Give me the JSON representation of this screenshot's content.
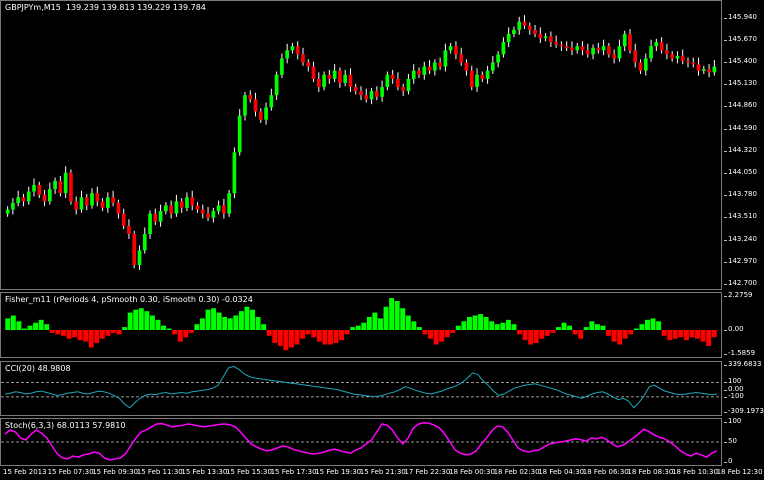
{
  "chart_data": [
    {
      "type": "candlestick",
      "symbol_label": "GBPJPYm,M15",
      "ohlc_label": "139.239 139.813 139.229 139.784",
      "ylim": [
        142.7,
        146.08
      ],
      "price_ticks": [
        "145.940",
        "145.670",
        "145.400",
        "145.130",
        "144.860",
        "144.590",
        "144.320",
        "144.050",
        "143.780",
        "143.510",
        "143.240",
        "142.970",
        "142.700"
      ],
      "closes": [
        143.6,
        143.68,
        143.75,
        143.7,
        143.82,
        143.9,
        143.78,
        143.7,
        143.85,
        143.95,
        143.8,
        144.05,
        143.7,
        143.6,
        143.75,
        143.65,
        143.8,
        143.7,
        143.62,
        143.75,
        143.68,
        143.55,
        143.4,
        143.3,
        142.92,
        143.1,
        143.3,
        143.55,
        143.45,
        143.58,
        143.65,
        143.55,
        143.7,
        143.62,
        143.75,
        143.65,
        143.6,
        143.55,
        143.5,
        143.58,
        143.65,
        143.55,
        143.8,
        144.3,
        144.75,
        145.0,
        144.95,
        144.8,
        144.7,
        144.85,
        145.0,
        145.25,
        145.45,
        145.55,
        145.6,
        145.5,
        145.4,
        145.35,
        145.2,
        145.1,
        145.25,
        145.2,
        145.3,
        145.15,
        145.25,
        145.1,
        145.05,
        145.0,
        144.95,
        145.05,
        144.98,
        145.1,
        145.25,
        145.2,
        145.1,
        145.05,
        145.2,
        145.3,
        145.25,
        145.35,
        145.3,
        145.4,
        145.35,
        145.55,
        145.6,
        145.5,
        145.4,
        145.3,
        145.1,
        145.25,
        145.2,
        145.3,
        145.4,
        145.5,
        145.65,
        145.75,
        145.8,
        145.9,
        145.85,
        145.8,
        145.75,
        145.7,
        145.72,
        145.65,
        145.62,
        145.6,
        145.58,
        145.55,
        145.6,
        145.55,
        145.5,
        145.58,
        145.55,
        145.6,
        145.5,
        145.45,
        145.6,
        145.75,
        145.55,
        145.4,
        145.3,
        145.45,
        145.6,
        145.65,
        145.55,
        145.5,
        145.45,
        145.48,
        145.42,
        145.4,
        145.38,
        145.3,
        145.32,
        145.28,
        145.35
      ]
    },
    {
      "type": "bar",
      "label": "Fisher_m11 (rPeriods 4, pSmooth 0.30, iSmooth 0.30) -0.0324",
      "ylim": [
        -1.5859,
        2.2759
      ],
      "ticks": [
        "2.2759",
        "0.00",
        "-1.5859"
      ],
      "values": [
        0.8,
        1.0,
        0.6,
        0.1,
        0.3,
        0.5,
        0.7,
        0.4,
        -0.2,
        -0.3,
        -0.4,
        -0.6,
        -0.5,
        -0.7,
        -0.8,
        -1.2,
        -0.9,
        -0.6,
        -0.4,
        -0.2,
        -0.3,
        0.2,
        1.2,
        1.4,
        1.5,
        1.3,
        1.0,
        0.7,
        0.3,
        0.1,
        -0.3,
        -0.8,
        -0.5,
        -0.2,
        0.4,
        0.8,
        1.4,
        1.5,
        1.2,
        0.9,
        0.8,
        1.0,
        1.3,
        1.6,
        1.4,
        0.9,
        0.4,
        -0.4,
        -0.9,
        -1.1,
        -1.4,
        -1.2,
        -1.0,
        -0.6,
        -0.3,
        -0.5,
        -0.8,
        -1.0,
        -1.0,
        -0.9,
        -0.7,
        -0.3,
        0.2,
        0.3,
        0.5,
        0.9,
        1.2,
        0.8,
        1.6,
        2.2,
        2.0,
        1.5,
        1.0,
        0.6,
        0.2,
        -0.3,
        -0.6,
        -1.0,
        -0.8,
        -0.5,
        -0.2,
        0.3,
        0.6,
        0.9,
        1.0,
        1.1,
        0.9,
        0.6,
        0.4,
        0.5,
        0.7,
        0.4,
        -0.3,
        -0.7,
        -1.0,
        -0.9,
        -0.6,
        -0.4,
        -0.2,
        0.2,
        0.5,
        0.3,
        -0.3,
        -0.6,
        0.2,
        0.6,
        0.4,
        0.3,
        -0.4,
        -0.8,
        -1.0,
        -0.6,
        -0.3,
        0.1,
        0.4,
        0.7,
        0.8,
        0.6,
        -0.4,
        -0.7,
        -0.6,
        -0.5,
        -0.7,
        -0.5,
        -0.6,
        -0.8,
        -1.1,
        -0.5
      ],
      "pos_color": "#00ff00",
      "neg_color": "#ff0000"
    },
    {
      "type": "line",
      "label": "CCI(20) 48.9808",
      "ylim": [
        -309.1973,
        339.6833
      ],
      "ticks": [
        "339.6833",
        "100",
        "0.00",
        "-100",
        "-309.1973"
      ],
      "levels": [
        100,
        -100
      ],
      "values": [
        -60,
        -50,
        -30,
        -40,
        -60,
        -50,
        -30,
        -20,
        -40,
        -60,
        -80,
        -70,
        -50,
        -40,
        -30,
        -50,
        -60,
        -40,
        -20,
        -30,
        -50,
        -80,
        -120,
        -200,
        -250,
        -180,
        -120,
        -80,
        -60,
        -70,
        -50,
        -40,
        -60,
        -50,
        -40,
        -50,
        -30,
        -20,
        -10,
        0,
        20,
        60,
        180,
        300,
        320,
        280,
        220,
        180,
        160,
        150,
        140,
        130,
        120,
        110,
        100,
        90,
        80,
        70,
        60,
        50,
        40,
        30,
        20,
        10,
        0,
        -20,
        -40,
        -60,
        -70,
        -80,
        -90,
        -100,
        -90,
        -70,
        -50,
        -30,
        0,
        40,
        20,
        -10,
        -30,
        -50,
        -60,
        -40,
        -20,
        10,
        30,
        60,
        100,
        160,
        230,
        210,
        120,
        60,
        -20,
        -80,
        -60,
        -20,
        20,
        40,
        60,
        70,
        80,
        60,
        40,
        20,
        0,
        -30,
        -60,
        -80,
        -100,
        -120,
        -90,
        -60,
        -40,
        -30,
        -60,
        -100,
        -140,
        -120,
        -160,
        -250,
        -180,
        -80,
        40,
        60,
        20,
        -20,
        -40,
        -60,
        -70,
        -60,
        -50,
        -40,
        -50,
        -60,
        -70,
        -60
      ],
      "color": "#20a8b8"
    },
    {
      "type": "line",
      "label": "Stoch(6,3,3) 68.0113 57.9810",
      "ylim": [
        0,
        100
      ],
      "ticks": [
        "100",
        "50",
        "0"
      ],
      "levels": [
        50
      ],
      "values": [
        70,
        80,
        75,
        60,
        55,
        70,
        80,
        72,
        60,
        40,
        20,
        10,
        8,
        15,
        12,
        18,
        20,
        25,
        22,
        10,
        5,
        8,
        10,
        20,
        40,
        60,
        75,
        80,
        88,
        95,
        96,
        92,
        88,
        90,
        92,
        95,
        93,
        90,
        88,
        90,
        92,
        94,
        95,
        93,
        88,
        75,
        60,
        45,
        38,
        32,
        28,
        30,
        35,
        40,
        38,
        32,
        28,
        25,
        22,
        20,
        22,
        25,
        30,
        32,
        28,
        25,
        22,
        30,
        35,
        45,
        55,
        75,
        95,
        92,
        80,
        60,
        45,
        60,
        85,
        95,
        98,
        97,
        92,
        85,
        70,
        50,
        30,
        22,
        18,
        20,
        28,
        45,
        60,
        78,
        90,
        88,
        75,
        55,
        35,
        28,
        25,
        28,
        30,
        38,
        45,
        48,
        50,
        52,
        55,
        58,
        56,
        52,
        60,
        58,
        62,
        55,
        45,
        38,
        42,
        50,
        60,
        70,
        82,
        76,
        68,
        62,
        58,
        50,
        40,
        28,
        20,
        15,
        22,
        18,
        12,
        22,
        28
      ],
      "color": "#ff00ff"
    }
  ],
  "time_labels": [
    "15 Feb 2013",
    "15 Feb 07:30",
    "15 Feb 09:30",
    "15 Feb 11:30",
    "15 Feb 13:30",
    "15 Feb 15:30",
    "15 Feb 17:30",
    "15 Feb 19:30",
    "15 Feb 21:30",
    "17 Feb 22:30",
    "18 Feb 00:30",
    "18 Feb 02:30",
    "18 Feb 04:30",
    "18 Feb 06:30",
    "18 Feb 08:30",
    "18 Feb 10:30",
    "18 Feb 12:30"
  ]
}
